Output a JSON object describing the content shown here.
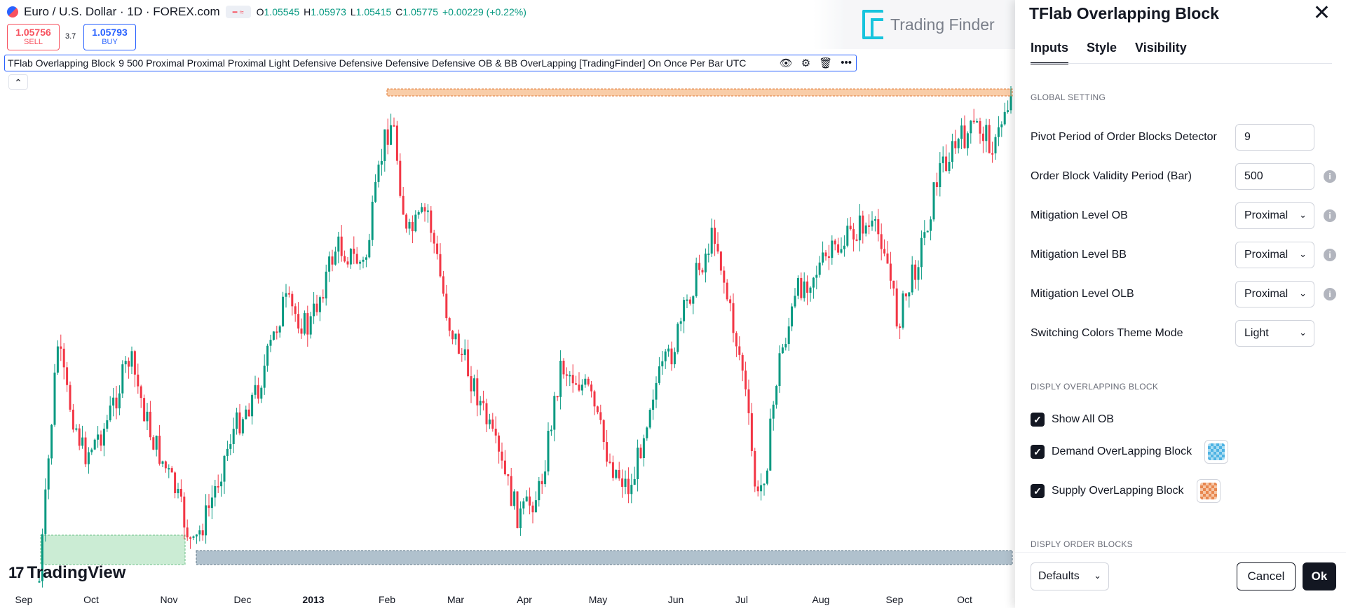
{
  "header": {
    "symbol_title": "Euro / U.S. Dollar · 1D · FOREX.com",
    "ohlc": {
      "o_label": "O",
      "o_value": "1.05545",
      "h_label": "H",
      "h_value": "1.05973",
      "l_label": "L",
      "l_value": "1.05415",
      "c_label": "C",
      "c_value": "1.05775",
      "change": "+0.00229 (+0.22%)"
    }
  },
  "trade": {
    "sell_price": "1.05756",
    "sell_label": "SELL",
    "spread": "3.7",
    "buy_price": "1.05793",
    "buy_label": "BUY"
  },
  "indicator_legend": {
    "name": "TFlab Overlapping Block",
    "args": "9 500 Proximal Proximal Proximal Light Defensive Defensive Defensive Defensive OB & BB OverLapping [TradingFinder] On Once Per Bar UTC"
  },
  "collapse_icon": "chevron-up-icon",
  "watermark": "Trading Finder",
  "brand": "TradingView",
  "x_axis": [
    "Sep",
    "Oct",
    "Nov",
    "Dec",
    "2013",
    "Feb",
    "Mar",
    "Apr",
    "May",
    "Jun",
    "Jul",
    "Aug",
    "Sep",
    "Oct"
  ],
  "colors": {
    "up": "#089981",
    "down": "#f23645",
    "supply_zone": "#f4a460",
    "demand_zone": "#a8e0b8",
    "ob_zone": "#8fa7b8",
    "accent": "#2962ff"
  },
  "dialog": {
    "title": "TFlab Overlapping Block",
    "tabs": [
      "Inputs",
      "Style",
      "Visibility"
    ],
    "active_tab": "Inputs",
    "section_global": "GLOBAL SETTING",
    "fields": [
      {
        "label": "Pivot Period of Order Blocks Detector",
        "value": "9"
      },
      {
        "label": "Order Block Validity Period (Bar)",
        "value": "500"
      },
      {
        "label": "Mitigation Level OB",
        "value": "Proximal"
      },
      {
        "label": "Mitigation Level BB",
        "value": "Proximal"
      },
      {
        "label": "Mitigation Level OLB",
        "value": "Proximal"
      },
      {
        "label": "Switching Colors Theme Mode",
        "value": "Light"
      }
    ],
    "section_overlap": "DISPLY OVERLAPPING BLOCK",
    "checkboxes": [
      {
        "label": "Show All OB",
        "checked": true
      },
      {
        "label": "Demand OverLapping Block",
        "checked": true
      },
      {
        "label": "Supply OverLapping Block",
        "checked": true
      }
    ],
    "section_order": "DISPLY ORDER BLOCKS",
    "footer": {
      "defaults": "Defaults",
      "cancel": "Cancel",
      "ok": "Ok"
    }
  }
}
